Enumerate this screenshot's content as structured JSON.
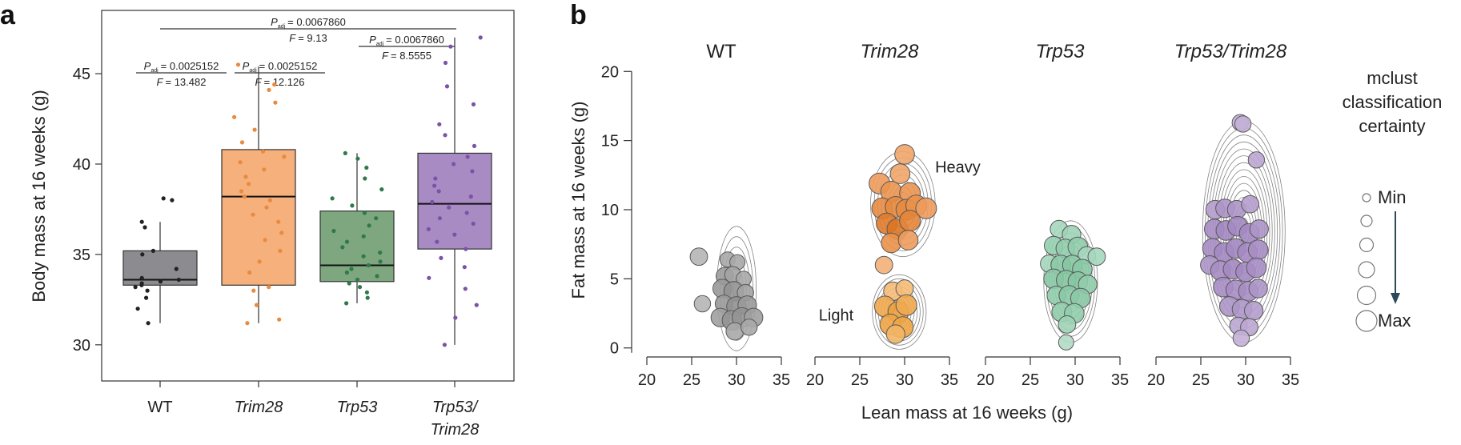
{
  "chart_data": [
    {
      "panel": "a",
      "type": "box",
      "ylabel": "Body mass at 16 weeks (g)",
      "ylim": [
        28,
        48.5
      ],
      "yticks": [
        30,
        35,
        40,
        45
      ],
      "categories": [
        "WT",
        "Trim28",
        "Trp53",
        "Trp53/\nTrim28"
      ],
      "category_lines": [
        [
          "WT"
        ],
        [
          "Trim28"
        ],
        [
          "Trp53"
        ],
        [
          "Trp53/",
          "Trim28"
        ]
      ],
      "category_italic": [
        false,
        true,
        true,
        true
      ],
      "colors": [
        "#8c8c90",
        "#f5b07c",
        "#7ea77f",
        "#a98bc4"
      ],
      "point_colors": [
        "#222222",
        "#e98a3e",
        "#2e7a4c",
        "#7b53a6"
      ],
      "boxes": [
        {
          "whisker_low": 31.2,
          "q1": 33.3,
          "median": 33.6,
          "q3": 35.2,
          "whisker_high": 36.8
        },
        {
          "whisker_low": 31.2,
          "q1": 33.3,
          "median": 38.2,
          "q3": 40.8,
          "whisker_high": 45.4
        },
        {
          "whisker_low": 32.3,
          "q1": 33.5,
          "median": 34.4,
          "q3": 37.4,
          "whisker_high": 40.6
        },
        {
          "whisker_low": 30.0,
          "q1": 35.3,
          "median": 37.8,
          "q3": 40.6,
          "whisker_high": 47.0
        }
      ],
      "points": [
        [
          31.2,
          32.0,
          32.6,
          33.0,
          33.2,
          33.3,
          33.4,
          33.5,
          33.6,
          33.7,
          34.2,
          35.0,
          35.2,
          36.5,
          36.8,
          38.0,
          38.1
        ],
        [
          31.2,
          31.4,
          32.2,
          33.0,
          33.2,
          34.0,
          34.6,
          35.2,
          35.8,
          36.2,
          36.8,
          37.2,
          37.6,
          38.0,
          38.2,
          38.5,
          38.9,
          39.3,
          39.7,
          40.1,
          40.4,
          40.7,
          41.2,
          41.9,
          42.6,
          43.4,
          44.1,
          44.4,
          45.5
        ],
        [
          32.3,
          32.6,
          32.9,
          33.2,
          33.4,
          33.6,
          33.8,
          34.0,
          34.2,
          34.4,
          34.6,
          34.9,
          35.1,
          35.4,
          35.7,
          36.0,
          36.3,
          36.6,
          37.0,
          37.3,
          37.7,
          38.1,
          38.6,
          39.2,
          39.8,
          40.3,
          40.6
        ],
        [
          30.0,
          31.5,
          32.2,
          33.1,
          33.7,
          34.3,
          34.8,
          35.3,
          35.7,
          36.1,
          36.4,
          36.7,
          37.0,
          37.3,
          37.6,
          37.9,
          38.2,
          38.5,
          38.8,
          39.2,
          39.6,
          40.0,
          40.4,
          41.0,
          41.6,
          42.2,
          43.3,
          44.3,
          45.6,
          46.5,
          47.0
        ]
      ],
      "comparisons": [
        {
          "from": 0,
          "to": 3,
          "p_label": "P",
          "p_sub": "adj",
          "p_value": "= 0.0067860",
          "f_label": "F",
          "f_value": "= 9.13",
          "level": 0
        },
        {
          "from": 2,
          "to": 3,
          "p_label": "P",
          "p_sub": "adj",
          "p_value": "= 0.0067860",
          "f_label": "F",
          "f_value": "= 8.5555",
          "level": 1
        },
        {
          "from": 0,
          "to": 1,
          "p_label": "P",
          "p_sub": "adj",
          "p_value": "= 0.0025152",
          "f_label": "F",
          "f_value": "= 13.482",
          "level": 2
        },
        {
          "from": 1,
          "to": 2,
          "p_label": "P",
          "p_sub": "adj",
          "p_value": "= 0.0025152",
          "f_label": "F",
          "f_value": "= 12.126",
          "level": 2
        }
      ]
    },
    {
      "panel": "b",
      "type": "scatter",
      "ylabel": "Fat mass at 16 weeks (g)",
      "xlabel": "Lean mass at 16 weeks (g)",
      "ylim": [
        -1,
        21
      ],
      "yticks": [
        0,
        5,
        10,
        15,
        20
      ],
      "xlim": [
        20,
        35
      ],
      "xticks": [
        20,
        25,
        30,
        35
      ],
      "facets": [
        {
          "title": "WT",
          "italic": false,
          "annotations": [],
          "contours": [
            {
              "cx": 30,
              "cy": 4.3,
              "rx": 2.2,
              "ry": 4.5,
              "n": 6
            }
          ],
          "points": [
            [
              25.8,
              6.6,
              0.7,
              "#b5b5b5"
            ],
            [
              26.2,
              3.2,
              0.6,
              "#b5b5b5"
            ],
            [
              29.0,
              6.4,
              0.5,
              "#a8a8a8"
            ],
            [
              30.1,
              6.2,
              0.5,
              "#a8a8a8"
            ],
            [
              28.7,
              5.2,
              0.7,
              "#9c9c9c"
            ],
            [
              29.6,
              5.3,
              0.6,
              "#a3a3a3"
            ],
            [
              30.8,
              5.0,
              0.5,
              "#a8a8a8"
            ],
            [
              28.4,
              4.3,
              0.8,
              "#9a9a9a"
            ],
            [
              29.7,
              4.1,
              0.9,
              "#929292"
            ],
            [
              31.0,
              4.0,
              0.6,
              "#a3a3a3"
            ],
            [
              28.6,
              3.2,
              0.7,
              "#9a9a9a"
            ],
            [
              30.0,
              3.0,
              0.9,
              "#919191"
            ],
            [
              31.2,
              3.1,
              0.8,
              "#9a9a9a"
            ],
            [
              28.2,
              2.2,
              0.8,
              "#a0a0a0"
            ],
            [
              29.5,
              2.0,
              0.9,
              "#949494"
            ],
            [
              30.6,
              2.2,
              0.9,
              "#939393"
            ],
            [
              31.9,
              2.2,
              0.8,
              "#a0a0a0"
            ],
            [
              29.8,
              1.2,
              0.7,
              "#a8a8a8"
            ],
            [
              31.4,
              1.5,
              0.6,
              "#a8a8a8"
            ]
          ]
        },
        {
          "title": "Trim28",
          "italic": true,
          "annotations": [
            {
              "text": "Heavy",
              "x": 33.4,
              "y": 13.1,
              "anchor": "start"
            },
            {
              "text": "Light",
              "x": 24.3,
              "y": 2.4,
              "anchor": "end"
            }
          ],
          "contours": [
            {
              "cx": 29.8,
              "cy": 10.4,
              "rx": 3.6,
              "ry": 3.8,
              "n": 9
            },
            {
              "cx": 29.4,
              "cy": 2.6,
              "rx": 3.0,
              "ry": 2.7,
              "n": 9
            }
          ],
          "points": [
            [
              30.0,
              14.0,
              0.9,
              "#f0a56a"
            ],
            [
              29.5,
              12.6,
              0.9,
              "#f0a56a"
            ],
            [
              27.2,
              11.9,
              1.0,
              "#ee9b5c"
            ],
            [
              28.5,
              11.3,
              1.0,
              "#eb9550"
            ],
            [
              30.6,
              11.2,
              1.0,
              "#eb9550"
            ],
            [
              27.5,
              10.1,
              1.0,
              "#e88c44"
            ],
            [
              29.0,
              10.2,
              1.0,
              "#e7893f"
            ],
            [
              30.2,
              10.0,
              1.0,
              "#e7893f"
            ],
            [
              31.3,
              10.3,
              1.0,
              "#ea9149"
            ],
            [
              32.4,
              10.1,
              1.0,
              "#ee9b5c"
            ],
            [
              28.0,
              9.0,
              1.0,
              "#e07b2c"
            ],
            [
              29.2,
              8.6,
              1.0,
              "#db7524"
            ],
            [
              30.6,
              9.2,
              1.0,
              "#e48538"
            ],
            [
              28.5,
              7.6,
              0.9,
              "#ea9149"
            ],
            [
              30.4,
              7.8,
              0.9,
              "#ee9b5c"
            ],
            [
              27.7,
              6.0,
              0.7,
              "#f2b079"
            ],
            [
              28.7,
              4.1,
              0.8,
              "#f5bd78"
            ],
            [
              30.0,
              4.3,
              0.7,
              "#f5bd78"
            ],
            [
              27.8,
              3.0,
              1.0,
              "#f0a94e"
            ],
            [
              29.3,
              2.6,
              1.0,
              "#eda23f"
            ],
            [
              30.2,
              3.1,
              1.0,
              "#f0a94e"
            ],
            [
              28.4,
              1.7,
              1.0,
              "#efa545"
            ],
            [
              29.8,
              1.5,
              1.0,
              "#efa545"
            ],
            [
              29.0,
              1.0,
              0.8,
              "#f3b665"
            ]
          ]
        },
        {
          "title": "Trp53",
          "italic": true,
          "annotations": [],
          "contours": [
            {
              "cx": 29.5,
              "cy": 4.8,
              "rx": 3.0,
              "ry": 4.4,
              "n": 10
            }
          ],
          "points": [
            [
              28.2,
              8.6,
              0.7,
              "#a5d7be"
            ],
            [
              29.6,
              8.2,
              0.8,
              "#9dd3b6"
            ],
            [
              27.6,
              7.4,
              0.8,
              "#96cfb0"
            ],
            [
              28.9,
              7.2,
              0.8,
              "#91cdac"
            ],
            [
              30.3,
              7.3,
              0.9,
              "#91cdac"
            ],
            [
              31.3,
              6.7,
              0.7,
              "#a5d7be"
            ],
            [
              32.4,
              6.6,
              0.7,
              "#a5d7be"
            ],
            [
              27.1,
              6.1,
              0.7,
              "#a5d7be"
            ],
            [
              28.4,
              6.0,
              0.9,
              "#8ac9a6"
            ],
            [
              29.7,
              6.0,
              0.9,
              "#86c7a2"
            ],
            [
              30.8,
              5.7,
              0.9,
              "#8ac9a6"
            ],
            [
              27.6,
              5.0,
              0.9,
              "#8ac9a6"
            ],
            [
              29.0,
              4.9,
              0.9,
              "#86c7a2"
            ],
            [
              30.3,
              4.8,
              0.9,
              "#86c7a2"
            ],
            [
              31.4,
              4.6,
              0.8,
              "#91cdac"
            ],
            [
              27.9,
              3.8,
              0.8,
              "#91cdac"
            ],
            [
              29.3,
              3.8,
              0.9,
              "#8ac9a6"
            ],
            [
              30.6,
              3.6,
              0.9,
              "#8ac9a6"
            ],
            [
              28.5,
              2.6,
              0.9,
              "#91cdac"
            ],
            [
              29.9,
              2.5,
              0.9,
              "#91cdac"
            ],
            [
              29.1,
              1.7,
              0.7,
              "#9dd3b6"
            ],
            [
              29.0,
              0.4,
              0.5,
              "#b1dcc6"
            ]
          ]
        },
        {
          "title": "Trp53/Trim28",
          "italic": true,
          "annotations": [],
          "contours": [
            {
              "cx": 29.8,
              "cy": 8.4,
              "rx": 4.6,
              "ry": 8.0,
              "n": 16
            }
          ],
          "points": [
            [
              29.4,
              16.3,
              0.6,
              "#c3b0d6"
            ],
            [
              29.7,
              16.2,
              0.6,
              "#c3b0d6"
            ],
            [
              31.2,
              13.6,
              0.6,
              "#bba6d1"
            ],
            [
              26.6,
              10.0,
              0.8,
              "#b49dcd"
            ],
            [
              27.7,
              10.1,
              0.8,
              "#ad95c8"
            ],
            [
              29.0,
              10.0,
              0.8,
              "#ad95c8"
            ],
            [
              30.5,
              10.4,
              0.7,
              "#b49dcd"
            ],
            [
              26.5,
              8.6,
              0.9,
              "#a78dc4"
            ],
            [
              27.8,
              8.5,
              0.9,
              "#a488c2"
            ],
            [
              29.1,
              8.8,
              0.9,
              "#a488c2"
            ],
            [
              30.4,
              8.3,
              0.9,
              "#a488c2"
            ],
            [
              31.5,
              8.6,
              0.8,
              "#ad95c8"
            ],
            [
              26.3,
              7.2,
              0.9,
              "#a78dc4"
            ],
            [
              27.6,
              6.9,
              0.9,
              "#a488c2"
            ],
            [
              28.9,
              7.2,
              0.9,
              "#a488c2"
            ],
            [
              30.2,
              6.9,
              0.9,
              "#a488c2"
            ],
            [
              31.4,
              7.1,
              0.9,
              "#a78dc4"
            ],
            [
              26.0,
              6.0,
              0.8,
              "#ad95c8"
            ],
            [
              27.2,
              5.6,
              0.9,
              "#a78dc4"
            ],
            [
              28.6,
              5.7,
              0.9,
              "#a488c2"
            ],
            [
              30.0,
              5.5,
              0.9,
              "#a488c2"
            ],
            [
              31.2,
              5.8,
              0.9,
              "#a78dc4"
            ],
            [
              27.5,
              4.4,
              0.9,
              "#a78dc4"
            ],
            [
              28.9,
              4.2,
              0.9,
              "#a78dc4"
            ],
            [
              30.3,
              4.1,
              0.9,
              "#a78dc4"
            ],
            [
              31.4,
              4.3,
              0.8,
              "#ad95c8"
            ],
            [
              28.2,
              3.0,
              0.9,
              "#ad95c8"
            ],
            [
              29.6,
              2.8,
              0.9,
              "#ad95c8"
            ],
            [
              30.9,
              2.7,
              0.8,
              "#b49dcd"
            ],
            [
              29.2,
              1.6,
              0.7,
              "#bba6d1"
            ],
            [
              30.4,
              1.5,
              0.7,
              "#bba6d1"
            ],
            [
              29.5,
              0.7,
              0.6,
              "#c3b0d6"
            ]
          ]
        }
      ],
      "legend": {
        "title_lines": [
          "mclust",
          "classification",
          "certainty"
        ],
        "min_label": "Min",
        "max_label": "Max",
        "sizes": [
          0.2,
          0.4,
          0.55,
          0.7,
          0.85,
          1.0
        ]
      }
    }
  ]
}
